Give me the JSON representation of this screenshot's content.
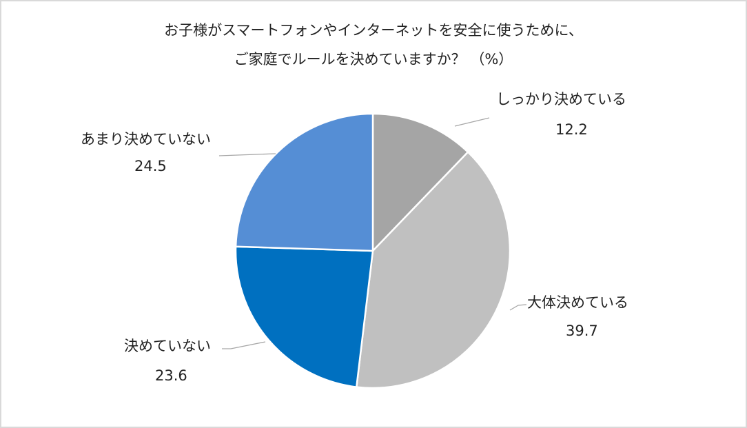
{
  "chart_data": {
    "type": "pie",
    "title": "お子様がスマートフォンやインターネットを安全に使うために、ご家庭でルールを決めていますか？ （%）",
    "title_lines": [
      "お子様がスマートフォンやインターネットを安全に使うために、",
      "ご家庭でルールを決めていますか？ （%）"
    ],
    "categories": [
      "しっかり決めている",
      "大体決めている",
      "決めていない",
      "あまり決めていない"
    ],
    "values": [
      12.2,
      39.7,
      23.6,
      24.5
    ],
    "labels": [
      "12.2",
      "39.7",
      "23.6",
      "24.5"
    ],
    "colors": [
      "#a5a5a5",
      "#c0c0c0",
      "#0070c0",
      "#558ed5"
    ],
    "start_angle": "12 o'clock, clockwise",
    "legend": "none (data labels with leader lines)",
    "unit": "%"
  },
  "frame": {
    "border_color": "#d9d9d9",
    "background": "#ffffff"
  }
}
